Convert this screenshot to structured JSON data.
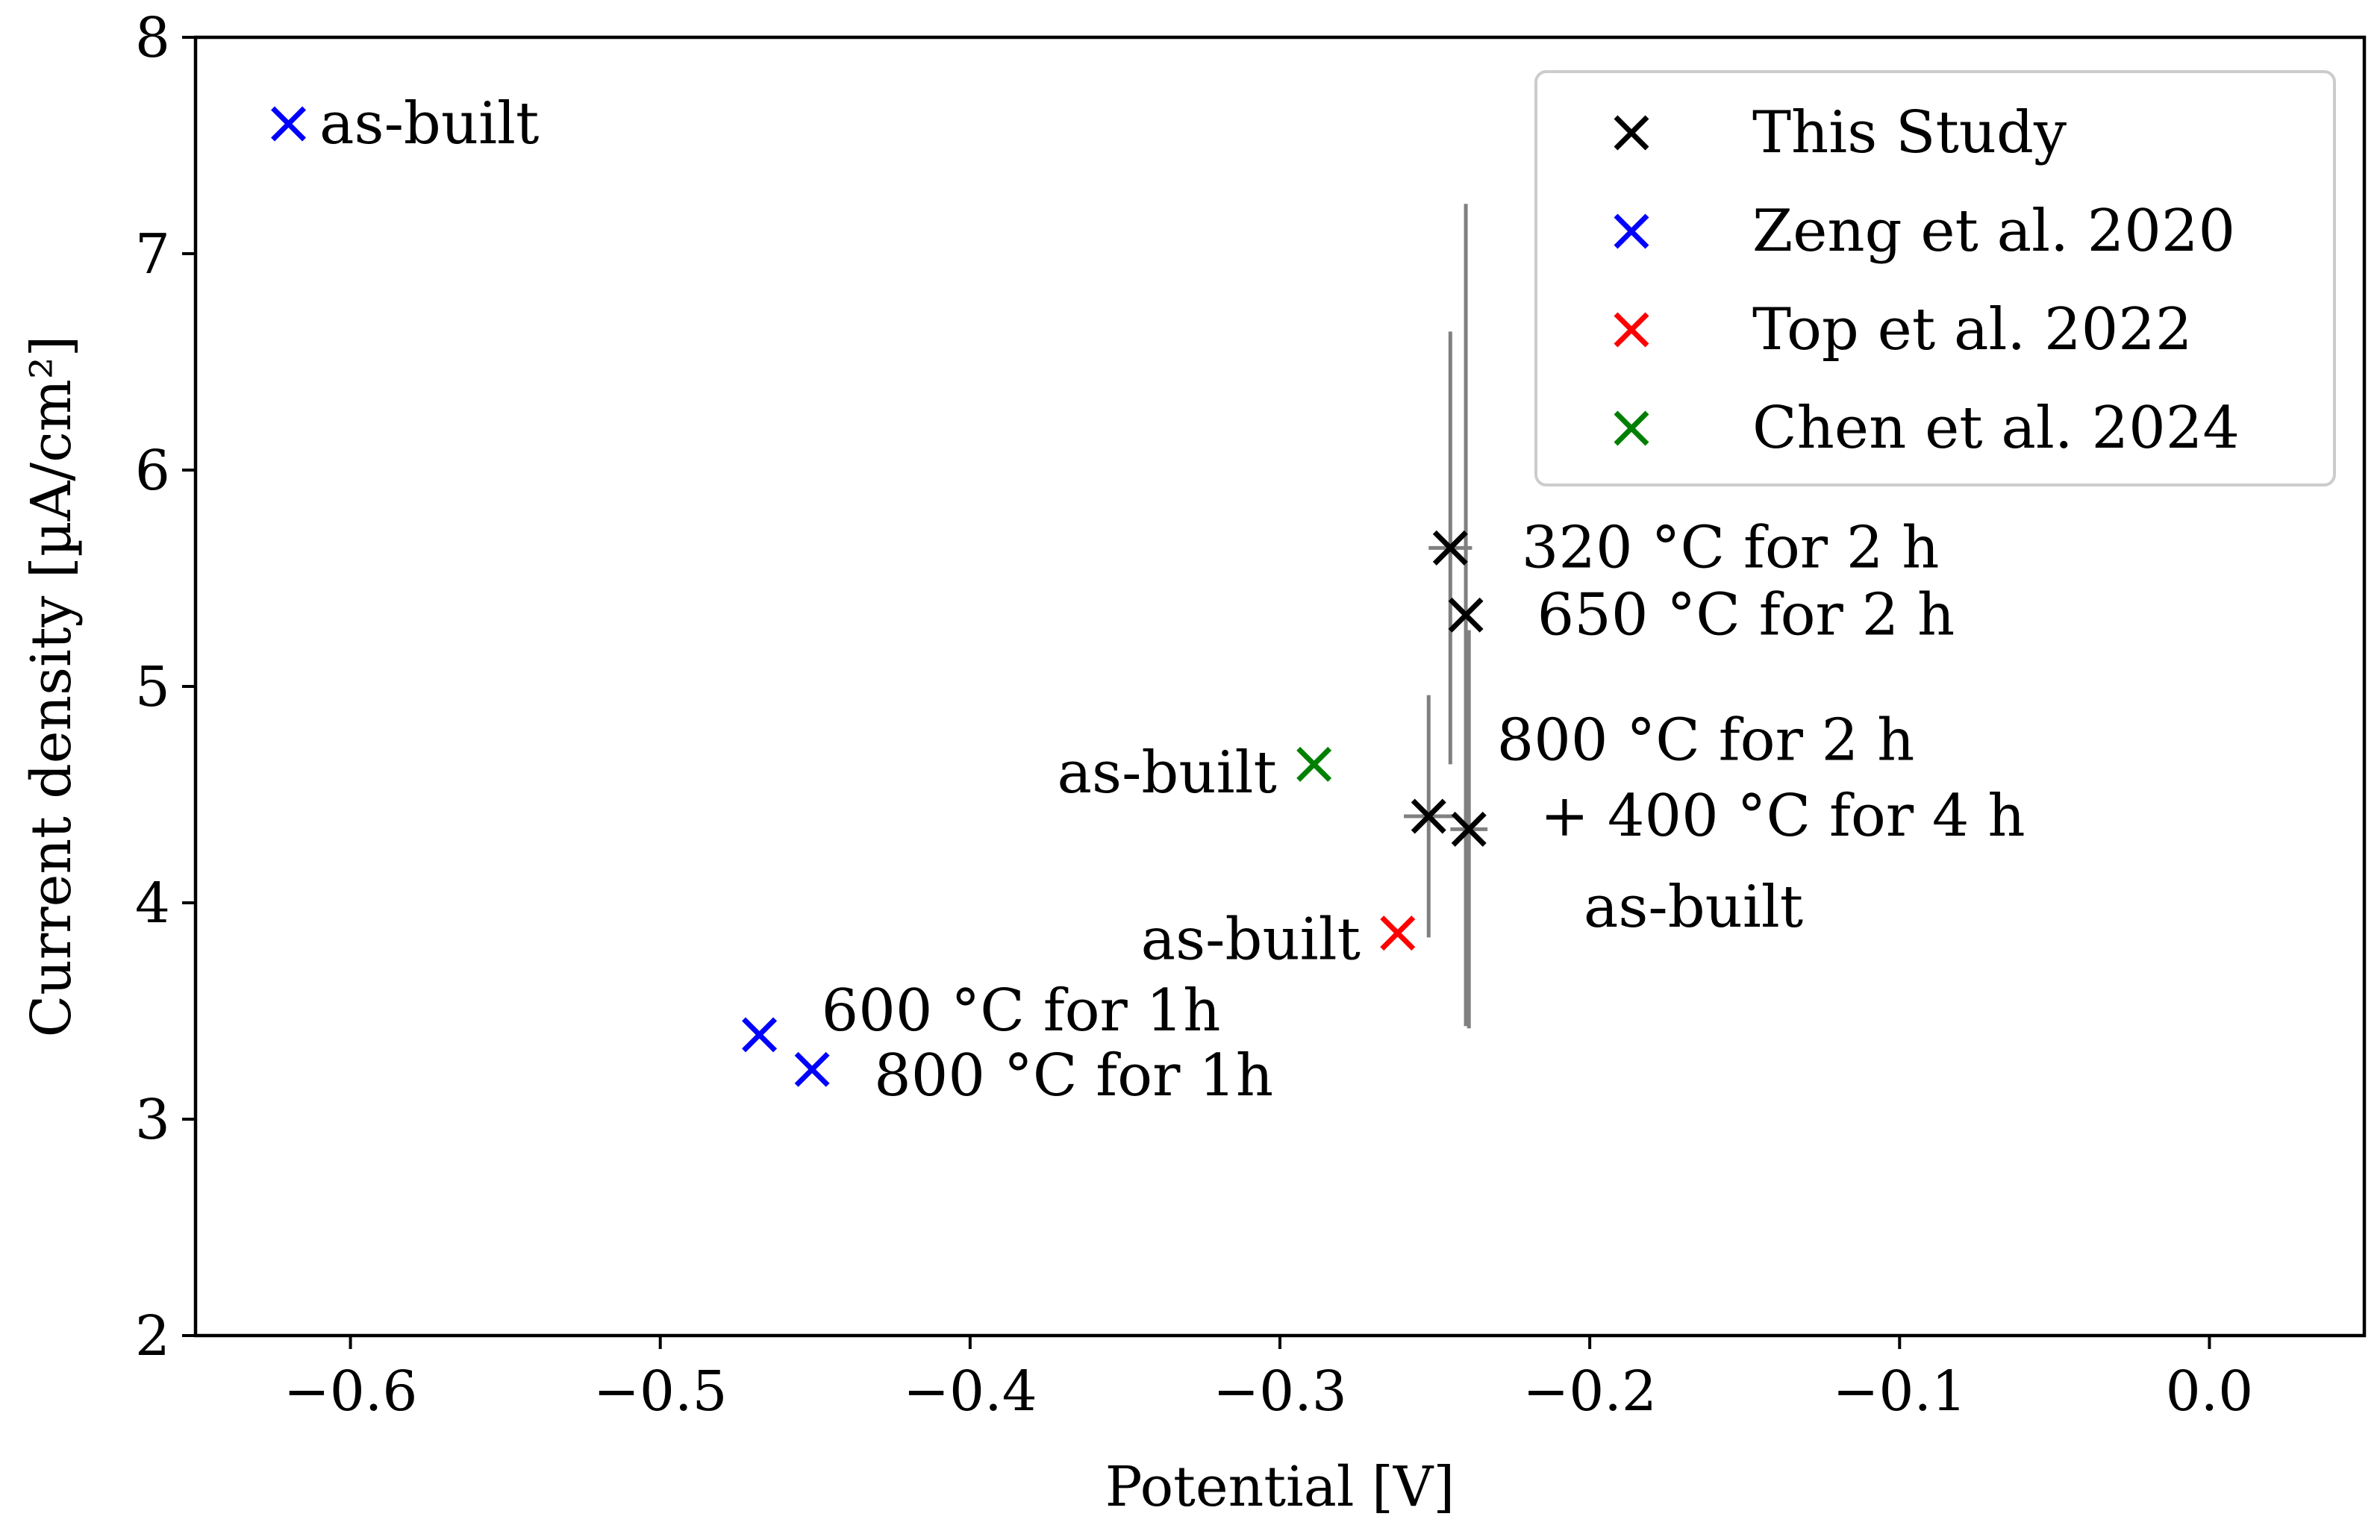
{
  "chart_data": {
    "type": "scatter",
    "xlabel": "Potential [V]",
    "ylabel": "Current density [µA/cm²]",
    "xlim": [
      -0.65,
      0.05
    ],
    "ylim": [
      2,
      8
    ],
    "xticks": [
      -0.6,
      -0.5,
      -0.4,
      -0.3,
      -0.2,
      -0.1,
      0.0
    ],
    "xtick_labels": [
      "−0.6",
      "−0.5",
      "−0.4",
      "−0.3",
      "−0.2",
      "−0.1",
      "0.0"
    ],
    "yticks": [
      2,
      3,
      4,
      5,
      6,
      7,
      8
    ],
    "ytick_labels": [
      "2",
      "3",
      "4",
      "5",
      "6",
      "7",
      "8"
    ],
    "grid": false,
    "legend_position": "top-right",
    "marker": "x",
    "series": [
      {
        "name": "This Study",
        "color": "#000000",
        "points": [
          {
            "x": -0.245,
            "y": 5.64,
            "xerr": 0.007,
            "yerr": 1.0
          },
          {
            "x": -0.24,
            "y": 5.33,
            "xerr": 0.0,
            "yerr": 1.9
          },
          {
            "x": -0.252,
            "y": 4.4,
            "xerr": 0.008,
            "yerr": 0.56
          },
          {
            "x": -0.239,
            "y": 4.34,
            "xerr": 0.006,
            "yerr": 0.92
          }
        ]
      },
      {
        "name": "Zeng et al. 2020",
        "color": "#0000ff",
        "points": [
          {
            "x": -0.62,
            "y": 7.6
          },
          {
            "x": -0.468,
            "y": 3.39
          },
          {
            "x": -0.451,
            "y": 3.23
          }
        ]
      },
      {
        "name": "Top et al. 2022",
        "color": "#ff0000",
        "points": [
          {
            "x": -0.262,
            "y": 3.86
          }
        ]
      },
      {
        "name": "Chen et al. 2024",
        "color": "#008000",
        "points": [
          {
            "x": -0.289,
            "y": 4.64
          }
        ]
      }
    ],
    "annotations": [
      {
        "text": "as-built",
        "x": -0.61,
        "y": 7.6,
        "anchor": "start"
      },
      {
        "text": "320 °C for 2 h",
        "x": -0.222,
        "y": 5.64,
        "anchor": "start"
      },
      {
        "text": "650 °C for 2 h",
        "x": -0.217,
        "y": 5.33,
        "anchor": "start"
      },
      {
        "text": "800 °C for 2 h",
        "x": -0.23,
        "y": 4.75,
        "anchor": "start"
      },
      {
        "text": "+ 400 °C for 4 h",
        "x": -0.216,
        "y": 4.4,
        "anchor": "start"
      },
      {
        "text": "as-built",
        "x": -0.202,
        "y": 3.98,
        "anchor": "start"
      },
      {
        "text": "as-built",
        "x": -0.301,
        "y": 4.6,
        "anchor": "end"
      },
      {
        "text": "as-built",
        "x": -0.274,
        "y": 3.83,
        "anchor": "end"
      },
      {
        "text": "600 °C for 1h",
        "x": -0.448,
        "y": 3.5,
        "anchor": "start"
      },
      {
        "text": "800 °C for 1h",
        "x": -0.431,
        "y": 3.2,
        "anchor": "start"
      }
    ]
  }
}
